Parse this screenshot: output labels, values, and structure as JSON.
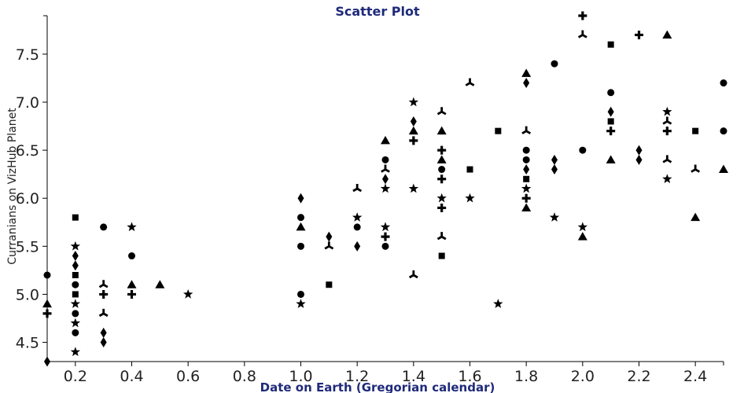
{
  "chart_data": {
    "type": "scatter",
    "title": "Scatter Plot",
    "xlabel": "Date on Earth (Gregorian calendar)",
    "ylabel": "Curranians on VizHub Planet",
    "xlim": [
      0.1,
      2.5
    ],
    "ylim": [
      4.3,
      7.9
    ],
    "x_ticks": [
      "0.2",
      "0.4",
      "0.6",
      "0.8",
      "1.0",
      "1.2",
      "1.4",
      "1.6",
      "1.8",
      "2.0",
      "2.2",
      "2.4"
    ],
    "y_ticks": [
      "4.5",
      "5.0",
      "5.5",
      "6.0",
      "6.5",
      "7.0",
      "7.5"
    ],
    "grid": false,
    "legend": "none",
    "color": "#000000",
    "title_color": "#1f2a7a",
    "points": [
      {
        "x": 0.1,
        "y": 5.2,
        "symbol": "circle"
      },
      {
        "x": 0.1,
        "y": 4.9,
        "symbol": "triangle"
      },
      {
        "x": 0.1,
        "y": 4.8,
        "symbol": "cross"
      },
      {
        "x": 0.1,
        "y": 4.3,
        "symbol": "diamond"
      },
      {
        "x": 0.2,
        "y": 5.8,
        "symbol": "square"
      },
      {
        "x": 0.2,
        "y": 5.5,
        "symbol": "star"
      },
      {
        "x": 0.2,
        "y": 5.4,
        "symbol": "diamond"
      },
      {
        "x": 0.2,
        "y": 5.3,
        "symbol": "diamond"
      },
      {
        "x": 0.2,
        "y": 5.2,
        "symbol": "square"
      },
      {
        "x": 0.2,
        "y": 5.1,
        "symbol": "circle"
      },
      {
        "x": 0.2,
        "y": 5.0,
        "symbol": "square"
      },
      {
        "x": 0.2,
        "y": 4.9,
        "symbol": "star"
      },
      {
        "x": 0.2,
        "y": 4.8,
        "symbol": "circle"
      },
      {
        "x": 0.2,
        "y": 4.7,
        "symbol": "star"
      },
      {
        "x": 0.2,
        "y": 4.6,
        "symbol": "circle"
      },
      {
        "x": 0.2,
        "y": 4.4,
        "symbol": "star"
      },
      {
        "x": 0.3,
        "y": 5.7,
        "symbol": "circle"
      },
      {
        "x": 0.3,
        "y": 5.1,
        "symbol": "tri-y"
      },
      {
        "x": 0.3,
        "y": 5.0,
        "symbol": "cross"
      },
      {
        "x": 0.3,
        "y": 4.8,
        "symbol": "tri-y"
      },
      {
        "x": 0.3,
        "y": 4.6,
        "symbol": "diamond"
      },
      {
        "x": 0.3,
        "y": 4.5,
        "symbol": "diamond"
      },
      {
        "x": 0.4,
        "y": 5.7,
        "symbol": "star"
      },
      {
        "x": 0.4,
        "y": 5.4,
        "symbol": "circle"
      },
      {
        "x": 0.4,
        "y": 5.1,
        "symbol": "triangle"
      },
      {
        "x": 0.4,
        "y": 5.0,
        "symbol": "cross"
      },
      {
        "x": 0.5,
        "y": 5.1,
        "symbol": "triangle"
      },
      {
        "x": 0.6,
        "y": 5.0,
        "symbol": "star"
      },
      {
        "x": 1.0,
        "y": 6.0,
        "symbol": "diamond"
      },
      {
        "x": 1.0,
        "y": 5.8,
        "symbol": "circle"
      },
      {
        "x": 1.0,
        "y": 5.7,
        "symbol": "triangle"
      },
      {
        "x": 1.0,
        "y": 5.5,
        "symbol": "circle"
      },
      {
        "x": 1.0,
        "y": 5.0,
        "symbol": "circle"
      },
      {
        "x": 1.0,
        "y": 4.9,
        "symbol": "star"
      },
      {
        "x": 1.1,
        "y": 5.6,
        "symbol": "diamond"
      },
      {
        "x": 1.1,
        "y": 5.5,
        "symbol": "tri-y"
      },
      {
        "x": 1.1,
        "y": 5.1,
        "symbol": "square"
      },
      {
        "x": 1.2,
        "y": 6.1,
        "symbol": "tri-y"
      },
      {
        "x": 1.2,
        "y": 5.8,
        "symbol": "star"
      },
      {
        "x": 1.2,
        "y": 5.7,
        "symbol": "circle"
      },
      {
        "x": 1.2,
        "y": 5.5,
        "symbol": "diamond"
      },
      {
        "x": 1.3,
        "y": 6.6,
        "symbol": "triangle"
      },
      {
        "x": 1.3,
        "y": 6.4,
        "symbol": "circle"
      },
      {
        "x": 1.3,
        "y": 6.3,
        "symbol": "tri-y"
      },
      {
        "x": 1.3,
        "y": 6.2,
        "symbol": "diamond"
      },
      {
        "x": 1.3,
        "y": 6.1,
        "symbol": "star"
      },
      {
        "x": 1.3,
        "y": 5.7,
        "symbol": "star"
      },
      {
        "x": 1.3,
        "y": 5.6,
        "symbol": "cross"
      },
      {
        "x": 1.3,
        "y": 5.5,
        "symbol": "circle"
      },
      {
        "x": 1.4,
        "y": 7.0,
        "symbol": "star"
      },
      {
        "x": 1.4,
        "y": 6.8,
        "symbol": "diamond"
      },
      {
        "x": 1.4,
        "y": 6.7,
        "symbol": "triangle"
      },
      {
        "x": 1.4,
        "y": 6.6,
        "symbol": "cross"
      },
      {
        "x": 1.4,
        "y": 6.1,
        "symbol": "star"
      },
      {
        "x": 1.4,
        "y": 5.2,
        "symbol": "tri-y"
      },
      {
        "x": 1.5,
        "y": 6.9,
        "symbol": "tri-y"
      },
      {
        "x": 1.5,
        "y": 6.7,
        "symbol": "triangle"
      },
      {
        "x": 1.5,
        "y": 6.5,
        "symbol": "cross"
      },
      {
        "x": 1.5,
        "y": 6.4,
        "symbol": "triangle"
      },
      {
        "x": 1.5,
        "y": 6.3,
        "symbol": "circle"
      },
      {
        "x": 1.5,
        "y": 6.2,
        "symbol": "cross"
      },
      {
        "x": 1.5,
        "y": 6.0,
        "symbol": "star"
      },
      {
        "x": 1.5,
        "y": 5.9,
        "symbol": "cross"
      },
      {
        "x": 1.5,
        "y": 5.6,
        "symbol": "tri-y"
      },
      {
        "x": 1.5,
        "y": 5.4,
        "symbol": "square"
      },
      {
        "x": 1.6,
        "y": 7.2,
        "symbol": "tri-y"
      },
      {
        "x": 1.6,
        "y": 6.3,
        "symbol": "square"
      },
      {
        "x": 1.6,
        "y": 6.0,
        "symbol": "star"
      },
      {
        "x": 1.7,
        "y": 6.7,
        "symbol": "square"
      },
      {
        "x": 1.7,
        "y": 4.9,
        "symbol": "star"
      },
      {
        "x": 1.8,
        "y": 7.3,
        "symbol": "triangle"
      },
      {
        "x": 1.8,
        "y": 7.2,
        "symbol": "diamond"
      },
      {
        "x": 1.8,
        "y": 6.7,
        "symbol": "tri-y"
      },
      {
        "x": 1.8,
        "y": 6.5,
        "symbol": "circle"
      },
      {
        "x": 1.8,
        "y": 6.4,
        "symbol": "circle"
      },
      {
        "x": 1.8,
        "y": 6.3,
        "symbol": "diamond"
      },
      {
        "x": 1.8,
        "y": 6.2,
        "symbol": "square"
      },
      {
        "x": 1.8,
        "y": 6.1,
        "symbol": "star"
      },
      {
        "x": 1.8,
        "y": 6.0,
        "symbol": "cross"
      },
      {
        "x": 1.8,
        "y": 5.9,
        "symbol": "triangle"
      },
      {
        "x": 1.9,
        "y": 7.4,
        "symbol": "circle"
      },
      {
        "x": 1.9,
        "y": 6.4,
        "symbol": "diamond"
      },
      {
        "x": 1.9,
        "y": 6.3,
        "symbol": "diamond"
      },
      {
        "x": 1.9,
        "y": 5.8,
        "symbol": "star"
      },
      {
        "x": 2.0,
        "y": 7.9,
        "symbol": "cross"
      },
      {
        "x": 2.0,
        "y": 7.7,
        "symbol": "tri-y"
      },
      {
        "x": 2.0,
        "y": 6.5,
        "symbol": "circle"
      },
      {
        "x": 2.0,
        "y": 5.7,
        "symbol": "star"
      },
      {
        "x": 2.0,
        "y": 5.6,
        "symbol": "triangle"
      },
      {
        "x": 2.1,
        "y": 7.6,
        "symbol": "square"
      },
      {
        "x": 2.1,
        "y": 7.1,
        "symbol": "circle"
      },
      {
        "x": 2.1,
        "y": 6.9,
        "symbol": "diamond"
      },
      {
        "x": 2.1,
        "y": 6.8,
        "symbol": "square"
      },
      {
        "x": 2.1,
        "y": 6.7,
        "symbol": "cross"
      },
      {
        "x": 2.1,
        "y": 6.4,
        "symbol": "triangle"
      },
      {
        "x": 2.2,
        "y": 7.7,
        "symbol": "cross"
      },
      {
        "x": 2.2,
        "y": 6.5,
        "symbol": "diamond"
      },
      {
        "x": 2.2,
        "y": 6.4,
        "symbol": "diamond"
      },
      {
        "x": 2.3,
        "y": 7.7,
        "symbol": "triangle"
      },
      {
        "x": 2.3,
        "y": 6.9,
        "symbol": "star"
      },
      {
        "x": 2.3,
        "y": 6.8,
        "symbol": "tri-y"
      },
      {
        "x": 2.3,
        "y": 6.7,
        "symbol": "cross"
      },
      {
        "x": 2.3,
        "y": 6.4,
        "symbol": "tri-y"
      },
      {
        "x": 2.3,
        "y": 6.2,
        "symbol": "star"
      },
      {
        "x": 2.4,
        "y": 6.7,
        "symbol": "square"
      },
      {
        "x": 2.4,
        "y": 6.3,
        "symbol": "tri-y"
      },
      {
        "x": 2.4,
        "y": 5.8,
        "symbol": "triangle"
      },
      {
        "x": 2.5,
        "y": 7.2,
        "symbol": "circle"
      },
      {
        "x": 2.5,
        "y": 6.7,
        "symbol": "circle"
      },
      {
        "x": 2.5,
        "y": 6.3,
        "symbol": "triangle"
      }
    ]
  }
}
